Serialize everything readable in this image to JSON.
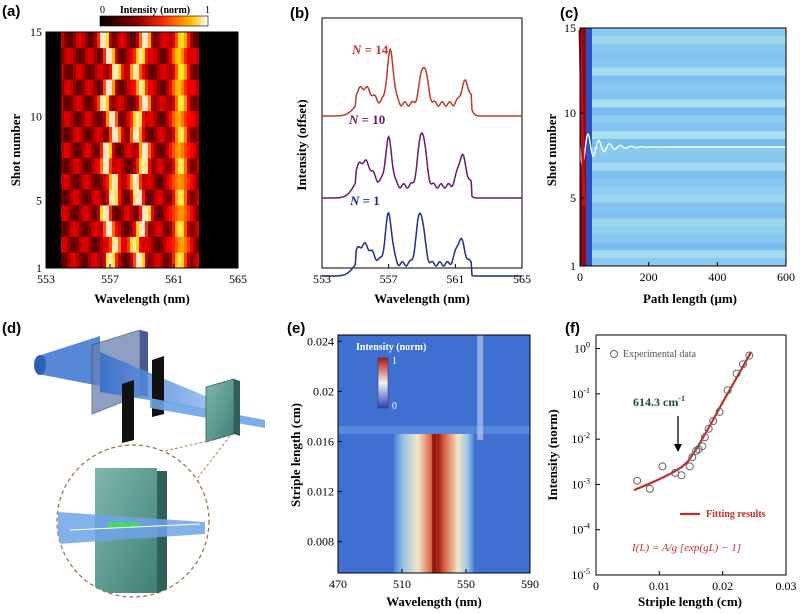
{
  "panels": {
    "a": {
      "label": "(a)",
      "colorbar": {
        "title": "Intensity (norm)",
        "min": "0",
        "max": "1"
      },
      "xlabel": "Wavelength (nm)",
      "ylabel": "Shot number",
      "xticks": [
        "553",
        "557",
        "561",
        "565"
      ],
      "yticks": [
        "1",
        "5",
        "10",
        "15"
      ]
    },
    "b": {
      "label": "(b)",
      "xlabel": "Wavelength (nm)",
      "ylabel": "Intensity (offset)",
      "xticks": [
        "553",
        "557",
        "561",
        "565"
      ],
      "series_labels": [
        {
          "var": "N",
          "eq": " = 14",
          "color": "#c0392b"
        },
        {
          "var": "N",
          "eq": " = 10",
          "color": "#6a1b6e"
        },
        {
          "var": "N",
          "eq": " = 1",
          "color": "#1f2f8a"
        }
      ]
    },
    "c": {
      "label": "(c)",
      "xlabel": "Path length (μm)",
      "ylabel": "Shot number",
      "xticks": [
        "0",
        "200",
        "400",
        "600"
      ],
      "yticks": [
        "1",
        "5",
        "10",
        "15"
      ]
    },
    "d": {
      "label": "(d)"
    },
    "e": {
      "label": "(e)",
      "colorbar": {
        "title": "Intensity (norm)",
        "min": "0",
        "max": "1"
      },
      "xlabel": "Wavelength (nm)",
      "ylabel": "Striple length (cm)",
      "xticks": [
        "470",
        "510",
        "550",
        "590"
      ],
      "yticks": [
        "0.024",
        "0.02",
        "0.016",
        "0.012",
        "0.008"
      ]
    },
    "f": {
      "label": "(f)",
      "xlabel": "Striple length (cm)",
      "ylabel": "Intensity (norm)",
      "xticks": [
        "0",
        "0.01",
        "0.02",
        "0.03"
      ],
      "yticks": [
        "10",
        "10",
        "10",
        "10",
        "10",
        "10",
        "10"
      ],
      "yexps": [
        "0",
        "-1",
        "-2",
        "-3",
        "-4",
        "-5",
        ""
      ],
      "legend_exp": "Experimental data",
      "legend_fit": "Fitting results",
      "annotation": "614.3 cm",
      "annotation_exp": "-1",
      "formula": "I(L) = A/g [exp(gL) − 1]"
    }
  },
  "chart_data": [
    {
      "type": "heatmap",
      "panel": "a",
      "xlabel": "Wavelength (nm)",
      "ylabel": "Shot number",
      "xlim": [
        553,
        565
      ],
      "ylim": [
        1,
        15
      ],
      "colorscale": "hot",
      "peak_wavelengths_nm": [
        557,
        558.9,
        561.4
      ]
    },
    {
      "type": "line",
      "panel": "b",
      "xlabel": "Wavelength (nm)",
      "ylabel": "Intensity (offset)",
      "xlim": [
        553,
        565
      ],
      "series": [
        {
          "name": "N = 14",
          "peaks_nm": [
            555.5,
            557.1,
            559.1,
            561.6
          ]
        },
        {
          "name": "N = 10",
          "peaks_nm": [
            555.5,
            557.0,
            559.0,
            561.4
          ]
        },
        {
          "name": "N = 1",
          "peaks_nm": [
            555.5,
            557.0,
            558.9,
            561.3
          ]
        }
      ]
    },
    {
      "type": "heatmap",
      "panel": "c",
      "xlabel": "Path length (μm)",
      "ylabel": "Shot number",
      "xlim": [
        0,
        600
      ],
      "ylim": [
        1,
        15
      ]
    },
    {
      "type": "heatmap",
      "panel": "e",
      "xlabel": "Wavelength (nm)",
      "ylabel": "Striple length (cm)",
      "xlim": [
        470,
        590
      ],
      "ylim": [
        0.0055,
        0.0245
      ],
      "threshold_cm": 0.0166,
      "peak_wavelength_nm": 530
    },
    {
      "type": "scatter",
      "panel": "f",
      "xlabel": "Striple length (cm)",
      "ylabel": "Intensity (norm)",
      "xlim": [
        0,
        0.03
      ],
      "ylim_log10": [
        -5,
        0.3
      ],
      "series": [
        {
          "name": "Experimental data",
          "x": [
            0.0065,
            0.0085,
            0.0105,
            0.0125,
            0.0135,
            0.0148,
            0.0152,
            0.0158,
            0.0162,
            0.0168,
            0.0172,
            0.0178,
            0.0185,
            0.0195,
            0.0208,
            0.0222,
            0.0232,
            0.0242
          ],
          "y": [
            0.0012,
            0.0008,
            0.0025,
            0.0018,
            0.0016,
            0.0025,
            0.004,
            0.0055,
            0.006,
            0.007,
            0.011,
            0.017,
            0.025,
            0.04,
            0.12,
            0.28,
            0.45,
            0.7
          ]
        },
        {
          "name": "Fitting results",
          "x": [
            0.006,
            0.008,
            0.01,
            0.012,
            0.0135,
            0.0145,
            0.016,
            0.018,
            0.02,
            0.022,
            0.0245
          ],
          "y": [
            0.00075,
            0.00098,
            0.0013,
            0.0018,
            0.0024,
            0.0032,
            0.0065,
            0.02,
            0.065,
            0.2,
            0.85
          ]
        }
      ]
    }
  ]
}
